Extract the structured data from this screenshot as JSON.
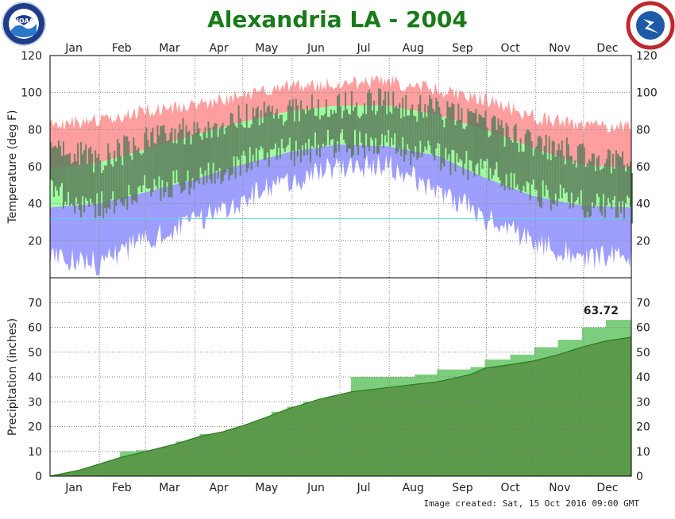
{
  "title": "Alexandria LA - 2004",
  "footer": "Image created: Sat, 15 Oct 2016 09:00 GMT",
  "logos": {
    "left": {
      "name": "noaa-logo",
      "text": "NOAA"
    },
    "right": {
      "name": "nws-logo",
      "text": "NATIONAL WEATHER SERVICE"
    }
  },
  "colors": {
    "title": "#1a7a1a",
    "record_high": "#ff9e9e",
    "normal_range": "#9eff9e",
    "record_low": "#9e9eff",
    "observed": "#5a7a5a",
    "freezing_line": "#5ad8d8",
    "precip_observed": "#7ccd7c",
    "precip_normal": "#5a9a4a",
    "precip_below": "#a89a7a"
  },
  "chart_data": [
    {
      "type": "area",
      "name": "temperature",
      "ylabel": "Temperature (deg F)",
      "xlabel": "",
      "ylim": [
        0,
        120
      ],
      "yticks": [
        20,
        40,
        60,
        80,
        100,
        120
      ],
      "categories": [
        "Jan",
        "Feb",
        "Mar",
        "Apr",
        "May",
        "Jun",
        "Jul",
        "Aug",
        "Sep",
        "Oct",
        "Nov",
        "Dec"
      ],
      "grid": true,
      "reference_line": 32,
      "x": [
        1,
        31,
        60,
        91,
        121,
        152,
        182,
        213,
        244,
        274,
        305,
        335,
        366
      ],
      "normal_high": [
        59,
        62,
        69,
        77,
        84,
        90,
        93,
        93,
        88,
        80,
        70,
        61,
        59
      ],
      "normal_low": [
        38,
        40,
        46,
        53,
        61,
        68,
        72,
        71,
        66,
        54,
        44,
        39,
        38
      ],
      "record_high": [
        82,
        85,
        90,
        93,
        98,
        103,
        105,
        106,
        102,
        96,
        87,
        82,
        82
      ],
      "record_low": [
        12,
        8,
        20,
        30,
        42,
        52,
        60,
        60,
        48,
        32,
        20,
        10,
        12
      ],
      "observed_high": [
        72,
        63,
        74,
        80,
        86,
        91,
        93,
        95,
        90,
        83,
        72,
        66,
        63
      ],
      "observed_low": [
        45,
        38,
        48,
        52,
        63,
        68,
        73,
        72,
        65,
        58,
        46,
        40,
        36
      ]
    },
    {
      "type": "area",
      "name": "precipitation",
      "ylabel": "Precipitation (inches)",
      "xlabel": "",
      "ylim": [
        0,
        80
      ],
      "yticks": [
        0,
        10,
        20,
        30,
        40,
        50,
        60,
        70
      ],
      "categories": [
        "Jan",
        "Feb",
        "Mar",
        "Apr",
        "May",
        "Jun",
        "Jul",
        "Aug",
        "Sep",
        "Oct",
        "Nov",
        "Dec"
      ],
      "grid": true,
      "annotation": "63.72",
      "x": [
        1,
        20,
        35,
        45,
        55,
        80,
        95,
        110,
        125,
        140,
        150,
        160,
        170,
        190,
        230,
        244,
        265,
        274,
        290,
        305,
        320,
        335,
        350,
        366
      ],
      "observed_cumulative": [
        0,
        3,
        5,
        10,
        10.5,
        14,
        17,
        18,
        20,
        26,
        28,
        30,
        31,
        40,
        41,
        43,
        44,
        47,
        49,
        52,
        55,
        60,
        63,
        63.72
      ],
      "normal_cumulative": [
        0,
        2.5,
        5.5,
        7.5,
        9,
        13,
        16,
        18,
        21,
        24.5,
        27,
        29,
        31,
        34,
        37,
        38,
        41,
        43.5,
        45,
        46.5,
        49,
        52,
        54.5,
        56
      ]
    }
  ]
}
